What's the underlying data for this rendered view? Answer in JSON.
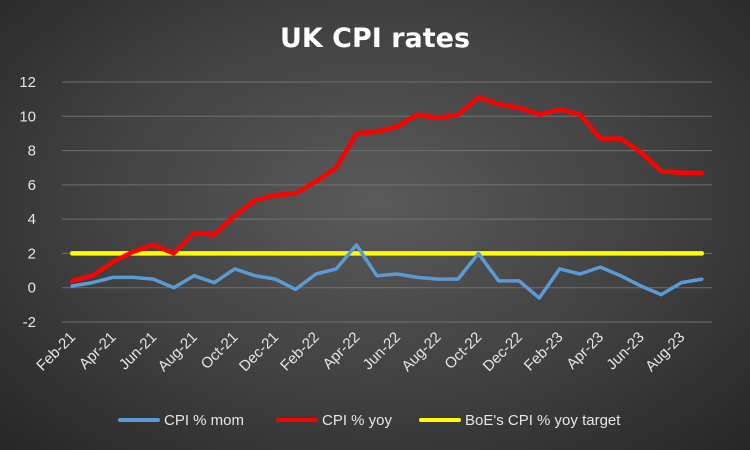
{
  "chart_data": {
    "type": "line",
    "title": "UK CPI rates",
    "xlabel": "",
    "ylabel": "",
    "ylim": [
      -2,
      12
    ],
    "yticks": [
      -2,
      0,
      2,
      4,
      6,
      8,
      10,
      12
    ],
    "x": [
      "Feb-21",
      "Mar-21",
      "Apr-21",
      "May-21",
      "Jun-21",
      "Jul-21",
      "Aug-21",
      "Sep-21",
      "Oct-21",
      "Nov-21",
      "Dec-21",
      "Jan-22",
      "Feb-22",
      "Mar-22",
      "Apr-22",
      "May-22",
      "Jun-22",
      "Jul-22",
      "Aug-22",
      "Sep-22",
      "Oct-22",
      "Nov-22",
      "Dec-22",
      "Jan-23",
      "Feb-23",
      "Mar-23",
      "Apr-23",
      "May-23",
      "Jun-23",
      "Jul-23",
      "Aug-23",
      "Sep-23"
    ],
    "tick_labels": [
      "Feb-21",
      "Apr-21",
      "Jun-21",
      "Aug-21",
      "Oct-21",
      "Dec-21",
      "Feb-22",
      "Apr-22",
      "Jun-22",
      "Aug-22",
      "Oct-22",
      "Dec-22",
      "Feb-23",
      "Apr-23",
      "Jun-23",
      "Aug-23"
    ],
    "series": [
      {
        "name": "CPI % mom",
        "color": "#5b9bd5",
        "values": [
          0.1,
          0.3,
          0.6,
          0.6,
          0.5,
          0.0,
          0.7,
          0.3,
          1.1,
          0.7,
          0.5,
          -0.1,
          0.8,
          1.1,
          2.5,
          0.7,
          0.8,
          0.6,
          0.5,
          0.5,
          2.0,
          0.4,
          0.4,
          -0.6,
          1.1,
          0.8,
          1.2,
          0.7,
          0.1,
          -0.4,
          0.3,
          0.5
        ]
      },
      {
        "name": "CPI % yoy",
        "color": "#ff0000",
        "values": [
          0.4,
          0.7,
          1.5,
          2.1,
          2.5,
          2.0,
          3.2,
          3.1,
          4.2,
          5.1,
          5.4,
          5.5,
          6.2,
          7.0,
          9.0,
          9.1,
          9.4,
          10.1,
          9.9,
          10.1,
          11.1,
          10.7,
          10.5,
          10.1,
          10.4,
          10.1,
          8.7,
          8.7,
          7.9,
          6.8,
          6.7,
          6.7
        ]
      },
      {
        "name": "BoE's CPI % yoy target",
        "color": "#ffff00",
        "values": [
          2,
          2,
          2,
          2,
          2,
          2,
          2,
          2,
          2,
          2,
          2,
          2,
          2,
          2,
          2,
          2,
          2,
          2,
          2,
          2,
          2,
          2,
          2,
          2,
          2,
          2,
          2,
          2,
          2,
          2,
          2,
          2
        ]
      }
    ],
    "legend_position": "bottom",
    "grid": true
  }
}
